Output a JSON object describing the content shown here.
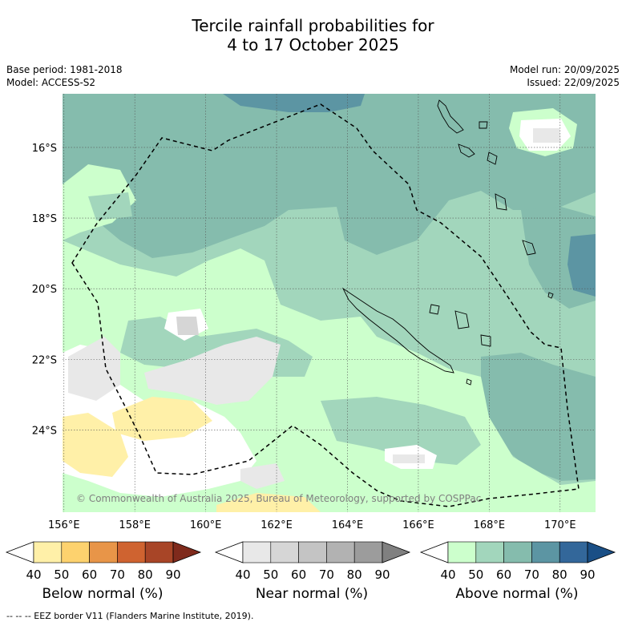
{
  "title_line1": "Tercile rainfall probabilities for",
  "title_line2": "4 to 17 October 2025",
  "base_period": "Base period: 1981-2018",
  "model": "Model: ACCESS-S2",
  "model_run": "Model run: 20/09/2025",
  "issued": "Issued: 22/09/2025",
  "copyright": "© Commonwealth of Australia 2025, Bureau of Meteorology, supported by COSPPac",
  "footer": "--  --  -- EEZ border V11 (Flanders Marine Institute, 2019).",
  "map": {
    "lon_labels": [
      "156°E",
      "158°E",
      "160°E",
      "162°E",
      "164°E",
      "166°E",
      "168°E",
      "170°E"
    ],
    "lat_labels": [
      "16°S",
      "18°S",
      "20°S",
      "22°S",
      "24°S"
    ],
    "lon_values": [
      156,
      158,
      160,
      162,
      164,
      166,
      168,
      170
    ],
    "lat_values": [
      -16,
      -18,
      -20,
      -22,
      -24
    ]
  },
  "legend": [
    {
      "label": "Below normal (%)",
      "ticks": [
        "40",
        "50",
        "60",
        "70",
        "80",
        "90"
      ],
      "colors": [
        "#ffffff",
        "#fff0a8",
        "#fdd26e",
        "#e89548",
        "#cf6330",
        "#a84527",
        "#7f2a1c"
      ]
    },
    {
      "label": "Near normal (%)",
      "ticks": [
        "40",
        "50",
        "60",
        "70",
        "80",
        "90"
      ],
      "colors": [
        "#ffffff",
        "#e8e8e8",
        "#d6d6d6",
        "#c4c4c4",
        "#b2b2b2",
        "#9c9c9c",
        "#808080"
      ]
    },
    {
      "label": "Above normal (%)",
      "ticks": [
        "40",
        "50",
        "60",
        "70",
        "80",
        "90"
      ],
      "colors": [
        "#ffffff",
        "#ccffcc",
        "#a2d6bc",
        "#85bcad",
        "#5c95a3",
        "#33679a",
        "#1a4f86"
      ]
    }
  ]
}
